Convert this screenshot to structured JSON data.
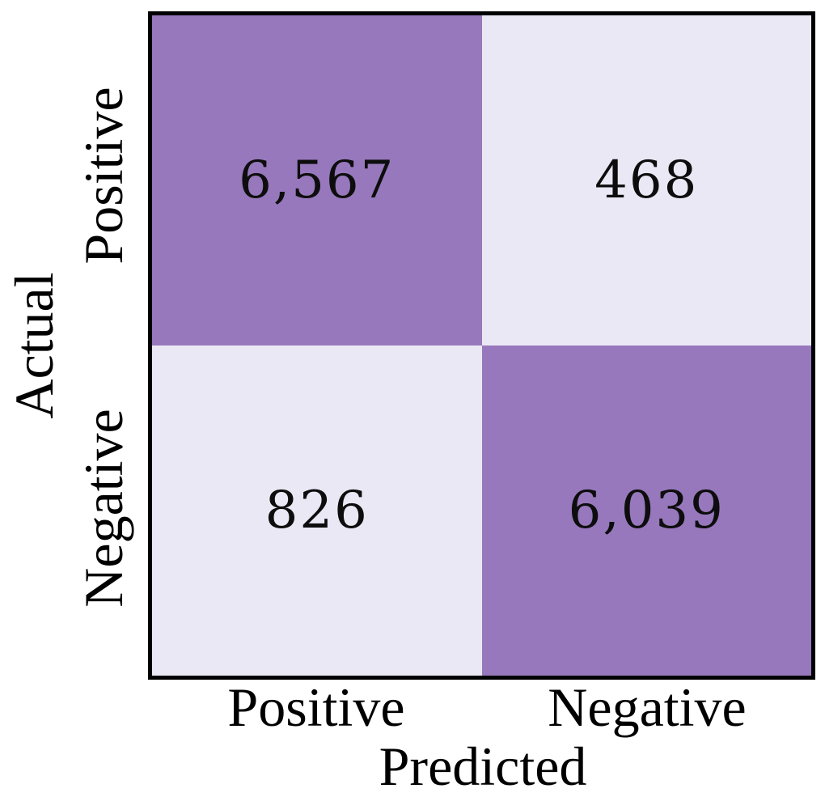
{
  "chart_data": {
    "type": "heatmap",
    "title": "",
    "xlabel": "Predicted",
    "ylabel": "Actual",
    "x_categories": [
      "Positive",
      "Negative"
    ],
    "y_categories": [
      "Positive",
      "Negative"
    ],
    "values": [
      [
        6567,
        468
      ],
      [
        826,
        6039
      ]
    ],
    "cell_labels": [
      [
        "6,567",
        "468"
      ],
      [
        "826",
        "6,039"
      ]
    ],
    "layout": {
      "grid": "2x2",
      "legend": "none",
      "frame": "thick black border",
      "y_tick_rotation_deg": 90
    },
    "colors": {
      "high_cell": "#9778BC",
      "low_cell": "#EAE8F5",
      "frame": "#000000",
      "background": "#FFFFFF",
      "text": "#000000"
    }
  }
}
